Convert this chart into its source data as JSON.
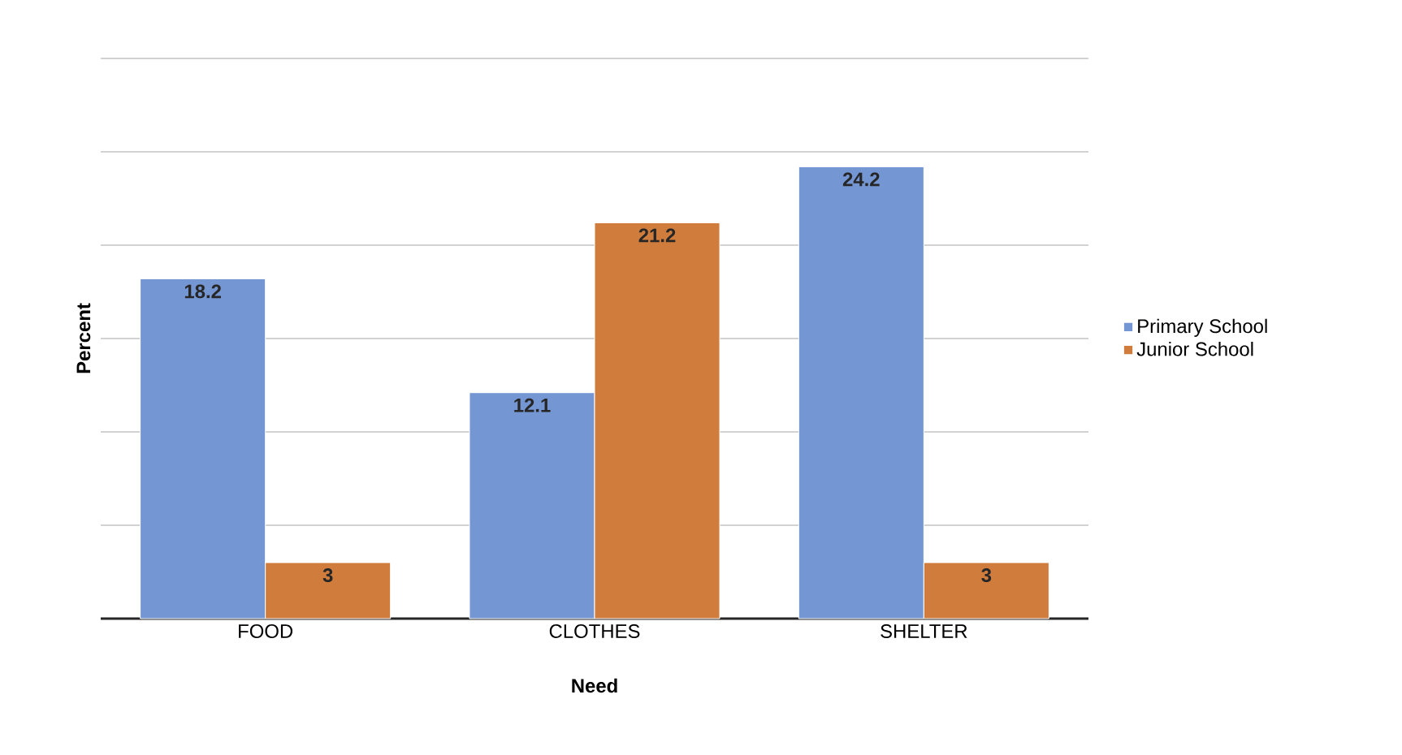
{
  "chart_data": {
    "type": "bar",
    "xlabel": "Need",
    "ylabel": "Percent",
    "categories": [
      "FOOD",
      "CLOTHES",
      "SHELTER"
    ],
    "series": [
      {
        "name": "Primary School",
        "color": "#7496d2",
        "values": [
          18.2,
          12.1,
          24.2
        ]
      },
      {
        "name": "Junior School",
        "color": "#d07c3c",
        "values": [
          3,
          21.2,
          3
        ]
      }
    ],
    "ylim": [
      0,
      30
    ],
    "yticks": [
      {
        "value": 0,
        "label": null
      },
      {
        "value": 5,
        "label": null
      },
      {
        "value": 10,
        "label": null
      },
      {
        "value": 15,
        "label": null
      },
      {
        "value": 20,
        "label": null
      },
      {
        "value": 25,
        "label": null
      },
      {
        "value": 30,
        "label": null
      }
    ],
    "tick_labels": "x",
    "grid": "y",
    "legend": "right",
    "data_labels": true
  }
}
